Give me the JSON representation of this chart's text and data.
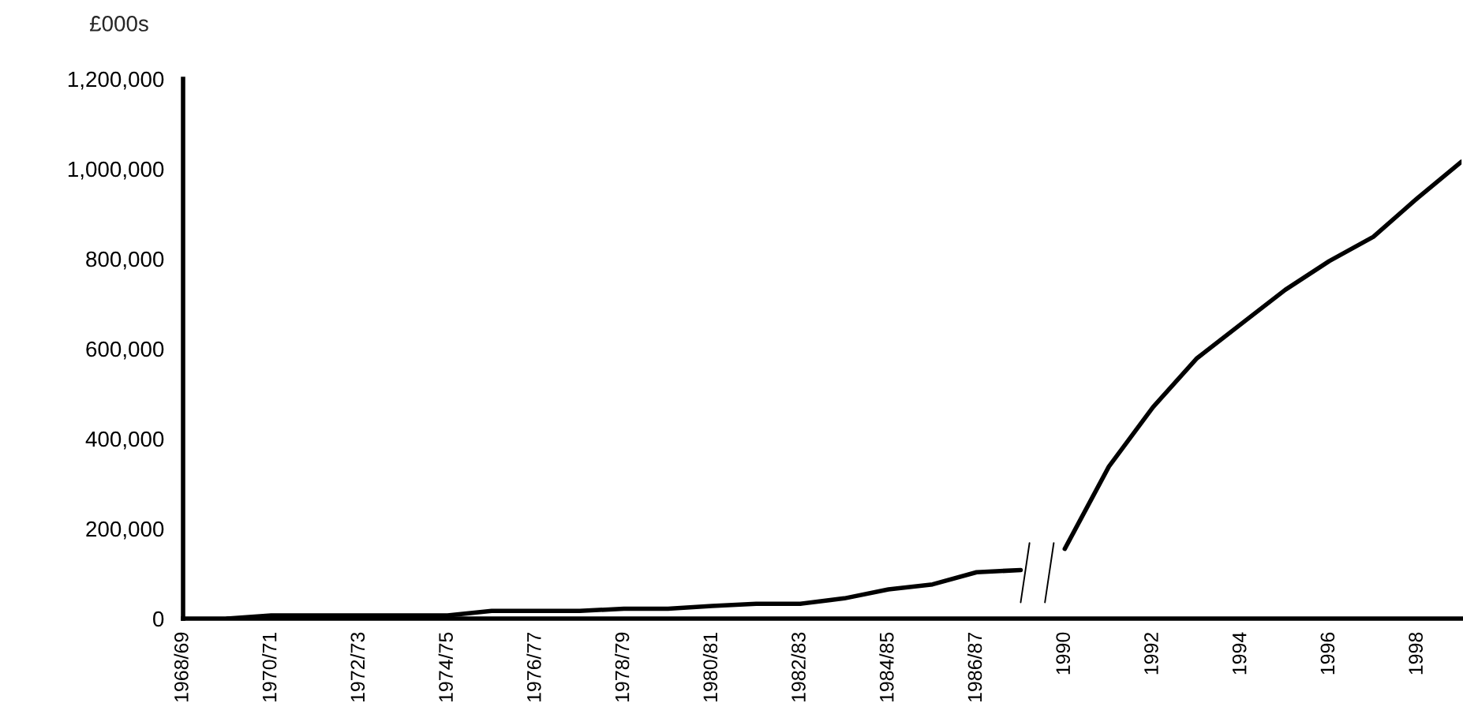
{
  "chart_data": {
    "type": "line",
    "ylabel": "£000s",
    "categories": [
      "1968/69",
      null,
      "1970/71",
      null,
      "1972/73",
      null,
      "1974/75",
      null,
      "1976/77",
      null,
      "1978/79",
      null,
      "1980/81",
      null,
      "1982/83",
      null,
      "1984/85",
      null,
      "1986/87",
      null,
      "1990",
      null,
      "1992",
      null,
      "1994",
      null,
      "1996",
      null,
      "1998",
      null
    ],
    "series": [
      {
        "color": "#000000",
        "values": [
          null,
          0,
          7000,
          7000,
          7000,
          7000,
          7000,
          17000,
          17000,
          17000,
          22000,
          22000,
          28000,
          33000,
          33000,
          45000,
          65000,
          76000,
          103000,
          108000,
          null,
          null,
          null,
          null,
          null,
          null,
          null,
          null,
          null,
          null
        ]
      },
      {
        "color": "#000000",
        "values": [
          null,
          null,
          null,
          null,
          null,
          null,
          null,
          null,
          null,
          null,
          null,
          null,
          null,
          null,
          null,
          null,
          null,
          null,
          null,
          null,
          155000,
          338000,
          470000,
          579000,
          655000,
          731000,
          795000,
          849000,
          935000,
          1016000
        ]
      }
    ],
    "ylim": [
      0,
      1200000
    ],
    "yticks": [
      0,
      {
        "value": 200000,
        "label": "200,000"
      },
      {
        "value": 400000,
        "label": "400,000"
      },
      {
        "value": 600000,
        "label": "600,000"
      },
      {
        "value": 800000,
        "label": "800,000"
      },
      {
        "value": 1000000,
        "label": "1,000,000"
      },
      {
        "value": 1200000,
        "label": "1,200,000"
      }
    ],
    "grid": false,
    "legend": false,
    "marker": "none",
    "line_style": "solid"
  }
}
